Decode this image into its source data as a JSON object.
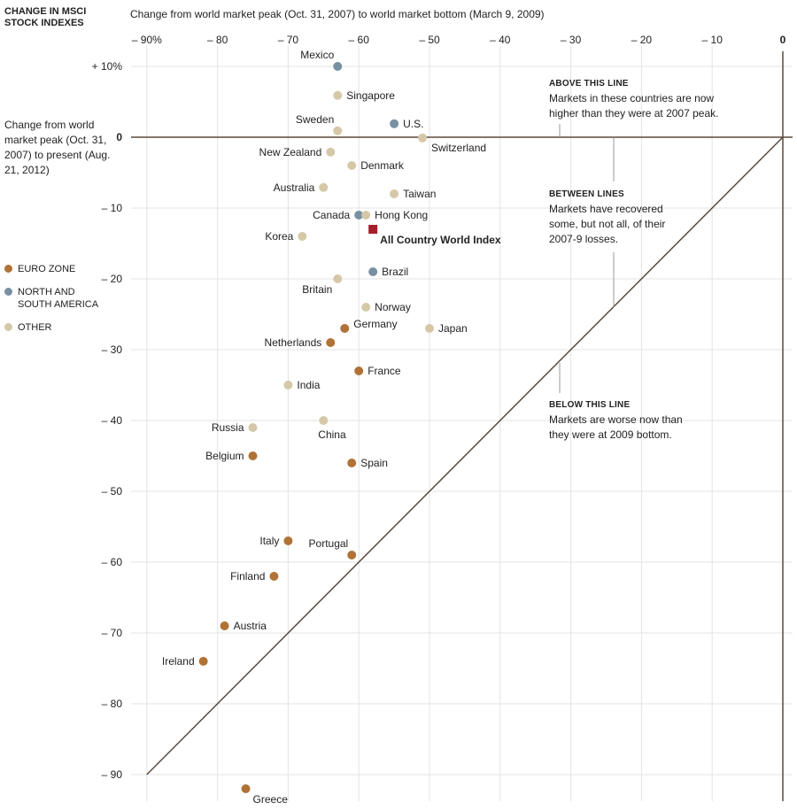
{
  "chart_data": {
    "type": "scatter",
    "title": "CHANGE IN MSCI STOCK INDEXES",
    "xlabel": "Change from world market peak (Oct. 31, 2007) to world market bottom (March 9, 2009)",
    "ylabel": "Change from world market peak (Oct. 31, 2007) to present (Aug. 21, 2012)",
    "xlim": [
      -92,
      1
    ],
    "ylim": [
      -93,
      12
    ],
    "x_ticks": [
      -90,
      -80,
      -70,
      -60,
      -50,
      -40,
      -30,
      -20,
      -10,
      0
    ],
    "x_tick_labels": [
      "– 90%",
      "– 80",
      "– 70",
      "– 60",
      "– 50",
      "– 40",
      "– 30",
      "– 20",
      "– 10",
      "0"
    ],
    "y_ticks": [
      10,
      0,
      -10,
      -20,
      -30,
      -40,
      -50,
      -60,
      -70,
      -80,
      -90
    ],
    "y_tick_labels": [
      "+ 10%",
      "0",
      "– 10",
      "– 20",
      "– 30",
      "– 40",
      "– 50",
      "– 60",
      "– 70",
      "– 80",
      "– 90"
    ],
    "grid": true,
    "reference_lines": [
      "y = 0",
      "y = x",
      "x = 0"
    ],
    "legend": [
      {
        "name": "EURO ZONE",
        "color": "#b07237"
      },
      {
        "name": "NORTH AND SOUTH AMERICA",
        "color": "#7890a1"
      },
      {
        "name": "OTHER",
        "color": "#d5c8a8"
      }
    ],
    "index_color": "#a31f2c",
    "points": [
      {
        "name": "Mexico",
        "x": -63,
        "y": 10,
        "group": "NORTH AND SOUTH AMERICA",
        "label": "above-left"
      },
      {
        "name": "Singapore",
        "x": -63,
        "y": 5.9,
        "group": "OTHER",
        "label": "right"
      },
      {
        "name": "Sweden",
        "x": -63,
        "y": 0.9,
        "group": "OTHER",
        "label": "above-left"
      },
      {
        "name": "U.S.",
        "x": -55,
        "y": 1.9,
        "group": "NORTH AND SOUTH AMERICA",
        "label": "right"
      },
      {
        "name": "Switzerland",
        "x": -51,
        "y": -0.1,
        "group": "OTHER",
        "label": "below-right"
      },
      {
        "name": "New Zealand",
        "x": -64,
        "y": -2.1,
        "group": "OTHER",
        "label": "left"
      },
      {
        "name": "Denmark",
        "x": -61,
        "y": -4,
        "group": "OTHER",
        "label": "right"
      },
      {
        "name": "Australia",
        "x": -65,
        "y": -7.1,
        "group": "OTHER",
        "label": "left"
      },
      {
        "name": "Taiwan",
        "x": -55,
        "y": -8,
        "group": "OTHER",
        "label": "right"
      },
      {
        "name": "Canada",
        "x": -60,
        "y": -11,
        "group": "NORTH AND SOUTH AMERICA",
        "label": "left"
      },
      {
        "name": "Hong Kong",
        "x": -59,
        "y": -11,
        "group": "OTHER",
        "label": "right"
      },
      {
        "name": "All Country World Index",
        "x": -58,
        "y": -13,
        "group": "INDEX",
        "label": "below-right"
      },
      {
        "name": "Korea",
        "x": -68,
        "y": -14,
        "group": "OTHER",
        "label": "left"
      },
      {
        "name": "Brazil",
        "x": -58,
        "y": -19,
        "group": "NORTH AND SOUTH AMERICA",
        "label": "right"
      },
      {
        "name": "Britain",
        "x": -63,
        "y": -20,
        "group": "OTHER",
        "label": "below-left"
      },
      {
        "name": "Norway",
        "x": -59,
        "y": -24,
        "group": "OTHER",
        "label": "right"
      },
      {
        "name": "Germany",
        "x": -62,
        "y": -27,
        "group": "EURO ZONE",
        "label": "above-right"
      },
      {
        "name": "Japan",
        "x": -50,
        "y": -27,
        "group": "OTHER",
        "label": "right"
      },
      {
        "name": "Netherlands",
        "x": -64,
        "y": -29,
        "group": "EURO ZONE",
        "label": "left"
      },
      {
        "name": "France",
        "x": -60,
        "y": -33,
        "group": "EURO ZONE",
        "label": "right"
      },
      {
        "name": "India",
        "x": -70,
        "y": -35,
        "group": "OTHER",
        "label": "right"
      },
      {
        "name": "China",
        "x": -65,
        "y": -40,
        "group": "OTHER",
        "label": "below-right"
      },
      {
        "name": "Russia",
        "x": -75,
        "y": -41,
        "group": "OTHER",
        "label": "left"
      },
      {
        "name": "Belgium",
        "x": -75,
        "y": -45,
        "group": "EURO ZONE",
        "label": "left"
      },
      {
        "name": "Spain",
        "x": -61,
        "y": -46,
        "group": "EURO ZONE",
        "label": "right"
      },
      {
        "name": "Italy",
        "x": -70,
        "y": -57,
        "group": "EURO ZONE",
        "label": "left"
      },
      {
        "name": "Portugal",
        "x": -61,
        "y": -59,
        "group": "EURO ZONE",
        "label": "above-left"
      },
      {
        "name": "Finland",
        "x": -72,
        "y": -62,
        "group": "EURO ZONE",
        "label": "left"
      },
      {
        "name": "Austria",
        "x": -79,
        "y": -69,
        "group": "EURO ZONE",
        "label": "right"
      },
      {
        "name": "Ireland",
        "x": -82,
        "y": -74,
        "group": "EURO ZONE",
        "label": "left"
      },
      {
        "name": "Greece",
        "x": -76,
        "y": -92,
        "group": "EURO ZONE",
        "label": "below-right"
      }
    ],
    "annotations": [
      {
        "heading": "ABOVE THIS LINE",
        "text": "Markets in these countries are now higher than they were at 2007 peak."
      },
      {
        "heading": "BETWEEN LINES",
        "text": "Markets have recovered some, but not all, of their 2007-9 losses."
      },
      {
        "heading": "BELOW THIS LINE",
        "text": "Markets are worse now than they were at 2009 bottom."
      }
    ]
  }
}
